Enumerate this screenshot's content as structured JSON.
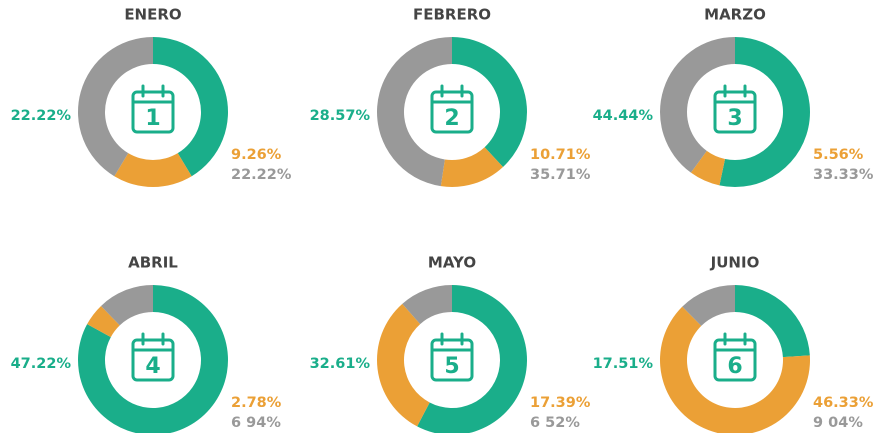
{
  "chart_data": [
    {
      "type": "donut",
      "title": "ENERO",
      "badge": "1",
      "values": [
        22.22,
        9.26,
        22.22
      ],
      "value_labels": [
        "22.22%",
        "9.26%",
        "22.22%"
      ],
      "colors": [
        "#1aae8a",
        "#eba036",
        "#999999"
      ]
    },
    {
      "type": "donut",
      "title": "FEBRERO",
      "badge": "2",
      "values": [
        28.57,
        10.71,
        35.71
      ],
      "value_labels": [
        "28.57%",
        "10.71%",
        "35.71%"
      ],
      "colors": [
        "#1aae8a",
        "#eba036",
        "#999999"
      ]
    },
    {
      "type": "donut",
      "title": "MARZO",
      "badge": "3",
      "values": [
        44.44,
        5.56,
        33.33
      ],
      "value_labels": [
        "44.44%",
        "5.56%",
        "33.33%"
      ],
      "colors": [
        "#1aae8a",
        "#eba036",
        "#999999"
      ]
    },
    {
      "type": "donut",
      "title": "ABRIL",
      "badge": "4",
      "values": [
        47.22,
        2.78,
        6.94
      ],
      "value_labels": [
        "47.22%",
        "2.78%",
        "6 94%"
      ],
      "colors": [
        "#1aae8a",
        "#eba036",
        "#999999"
      ]
    },
    {
      "type": "donut",
      "title": "MAYO",
      "badge": "5",
      "values": [
        32.61,
        17.39,
        6.52
      ],
      "value_labels": [
        "32.61%",
        "17.39%",
        "6 52%"
      ],
      "colors": [
        "#1aae8a",
        "#eba036",
        "#999999"
      ]
    },
    {
      "type": "donut",
      "title": "JUNIO",
      "badge": "6",
      "values": [
        17.51,
        46.33,
        9.04
      ],
      "value_labels": [
        "17.51%",
        "46.33%",
        "9 04%"
      ],
      "colors": [
        "#1aae8a",
        "#eba036",
        "#999999"
      ]
    }
  ]
}
